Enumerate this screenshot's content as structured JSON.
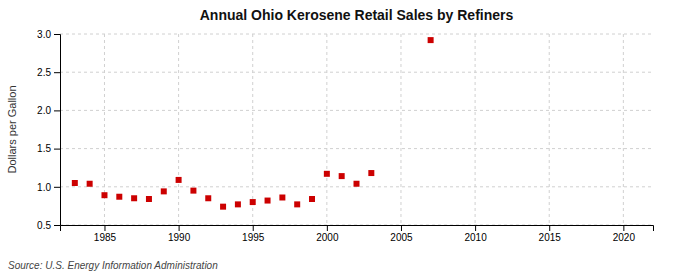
{
  "chart_data": {
    "type": "scatter",
    "title": "Annual Ohio Kerosene Retail Sales by Refiners",
    "ylabel": "Dollars per Gallon",
    "annotations": [
      "Source: U.S. Energy Information Administration"
    ],
    "x": [
      1983,
      1984,
      1985,
      1986,
      1987,
      1988,
      1989,
      1990,
      1991,
      1992,
      1993,
      1994,
      1995,
      1996,
      1997,
      1998,
      1999,
      2000,
      2001,
      2002,
      2003,
      2007
    ],
    "values": [
      1.05,
      1.04,
      0.89,
      0.87,
      0.85,
      0.84,
      0.94,
      1.09,
      0.95,
      0.85,
      0.74,
      0.77,
      0.8,
      0.82,
      0.86,
      0.77,
      0.84,
      1.17,
      1.14,
      1.04,
      1.18,
      2.92
    ],
    "color": "#cc0000",
    "marker": "square",
    "xlim": [
      1982,
      2022
    ],
    "ylim": [
      0.5,
      3.0
    ],
    "xticks": [
      1985,
      1990,
      1995,
      2000,
      2005,
      2010,
      2015,
      2020
    ],
    "yticks": [
      0.5,
      {
        "value": 1.0,
        "label": "1.0"
      },
      1.5,
      {
        "value": 2.0,
        "label": "2.0"
      },
      2.5,
      {
        "value": 3.0,
        "label": "3.0"
      }
    ],
    "grid": true
  }
}
